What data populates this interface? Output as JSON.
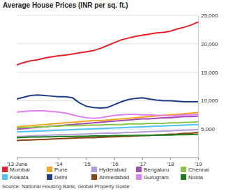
{
  "chart_data": {
    "type": "line",
    "title": "Average House Prices (INR per sq. ft.)",
    "source": "Source: National Housing Bank, Global Property Guide",
    "categories": [
      "'13 June",
      null,
      null,
      null,
      null,
      null,
      "'14",
      null,
      null,
      null,
      "'15",
      null,
      null,
      null,
      "'16",
      null,
      null,
      null,
      "'17",
      null,
      null,
      null,
      "'18",
      null,
      null,
      null,
      "'19"
    ],
    "ylim": [
      0,
      25000
    ],
    "yticks": [
      {
        "value": 5000,
        "label": "5,000"
      },
      {
        "value": 10000,
        "label": "10,000"
      },
      {
        "value": 15000,
        "label": "15,000"
      },
      {
        "value": 20000,
        "label": "20,000"
      },
      {
        "value": 25000,
        "label": "25,000"
      }
    ],
    "grid": true,
    "legend": "bottom",
    "series": [
      {
        "name": "Mumbai",
        "color": "#e8202a",
        "values": [
          16300,
          16700,
          17000,
          17200,
          17500,
          17700,
          17900,
          18000,
          18200,
          18400,
          18600,
          18800,
          19200,
          19700,
          20200,
          20700,
          21000,
          21300,
          21500,
          21700,
          21900,
          22000,
          22200,
          22600,
          22900,
          23300,
          23800
        ]
      },
      {
        "name": "Pune",
        "color": "#f5a623",
        "values": [
          5400,
          5500,
          5600,
          5700,
          5800,
          5900,
          6000,
          6100,
          6200,
          6300,
          6400,
          6500,
          6500,
          6600,
          6700,
          6800,
          6900,
          7000,
          7100,
          7200,
          7300,
          7400,
          7500,
          7600,
          7700,
          7800,
          7900
        ]
      },
      {
        "name": "Hyderabad",
        "color": "#b39ddb",
        "values": [
          3700,
          3750,
          3800,
          3850,
          3900,
          3950,
          4000,
          4000,
          4050,
          4100,
          4150,
          4200,
          4250,
          4300,
          4300,
          4350,
          4400,
          4450,
          4500,
          4550,
          4600,
          4650,
          4700,
          4750,
          4800,
          4850,
          4900
        ]
      },
      {
        "name": "Bengaluru",
        "color": "#a24bb0",
        "values": [
          5000,
          5100,
          5200,
          5300,
          5400,
          5500,
          5600,
          5700,
          5800,
          5900,
          6000,
          6100,
          6200,
          6300,
          6400,
          6500,
          6600,
          6700,
          6800,
          6800,
          6900,
          7000,
          7000,
          7100,
          7200,
          7200,
          7300
        ]
      },
      {
        "name": "Chennai",
        "color": "#8bc34a",
        "values": [
          5200,
          5300,
          5300,
          5400,
          5400,
          5500,
          5500,
          5600,
          5600,
          5600,
          5700,
          5700,
          5700,
          5800,
          5800,
          5800,
          5900,
          5900,
          5900,
          6000,
          6000,
          6000,
          6100,
          6100,
          6200,
          6200,
          6300
        ]
      },
      {
        "name": "Kolkata",
        "color": "#4fc3f7",
        "values": [
          4500,
          4550,
          4600,
          4650,
          4700,
          4750,
          4800,
          4850,
          4900,
          4950,
          5000,
          5050,
          5100,
          5150,
          5200,
          5250,
          5300,
          5350,
          5400,
          5450,
          5500,
          5550,
          5600,
          5650,
          5700,
          5750,
          5800
        ]
      },
      {
        "name": "Delhi",
        "color": "#1f3c88",
        "values": [
          10300,
          10600,
          10900,
          11000,
          10900,
          10800,
          10700,
          10700,
          10500,
          9600,
          9000,
          8800,
          8700,
          8800,
          9300,
          9800,
          10200,
          10400,
          10500,
          10300,
          10100,
          10000,
          10000,
          9900,
          9800,
          9800,
          9800
        ]
      },
      {
        "name": "Ahmedabad",
        "color": "#8b4513",
        "values": [
          3000,
          3050,
          3100,
          3150,
          3200,
          3250,
          3300,
          3350,
          3400,
          3450,
          3500,
          3500,
          3550,
          3600,
          3650,
          3700,
          3750,
          3800,
          3850,
          3900,
          3950,
          4000,
          4100,
          4150,
          4250,
          4300,
          4400
        ]
      },
      {
        "name": "Gurugram",
        "color": "#e07ff0",
        "values": [
          8000,
          8100,
          8200,
          8200,
          8200,
          8100,
          8000,
          7800,
          7500,
          7200,
          7000,
          6900,
          7000,
          7200,
          7400,
          7500,
          7600,
          7600,
          7500,
          7500,
          7400,
          7400,
          7300,
          7400,
          7500,
          7500,
          7600
        ]
      },
      {
        "name": "Noida",
        "color": "#1b7a1b",
        "values": [
          3500,
          3550,
          3600,
          3600,
          3650,
          3650,
          3700,
          3700,
          3700,
          3750,
          3750,
          3800,
          3800,
          3800,
          3850,
          3850,
          3850,
          3900,
          3900,
          3900,
          3950,
          3950,
          3950,
          4000,
          4000,
          4050,
          4100
        ]
      }
    ]
  }
}
